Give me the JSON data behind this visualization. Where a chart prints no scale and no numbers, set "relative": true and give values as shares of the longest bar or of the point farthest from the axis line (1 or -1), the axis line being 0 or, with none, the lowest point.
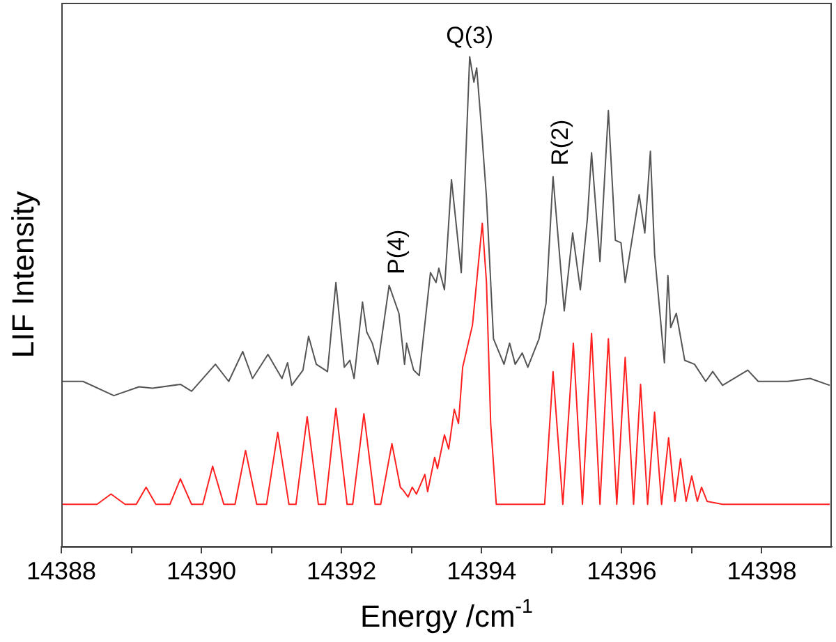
{
  "chart_data": {
    "type": "line",
    "relative": true,
    "xlabel": "Energy /cm$^{-1}$",
    "ylabel": "LIF Intensity",
    "xlim": [
      14388,
      14399
    ],
    "xticks": [
      14388,
      {
        "value": 14389,
        "label": null
      },
      14390,
      {
        "value": 14391,
        "label": null
      },
      14392,
      {
        "value": 14393,
        "label": null
      },
      14394,
      {
        "value": 14395,
        "label": null
      },
      14396,
      {
        "value": 14397,
        "label": null
      },
      14398
    ],
    "grid": false,
    "legend": false,
    "marker": "none",
    "line_style": "solid",
    "series": [
      {
        "color": "#555555",
        "x": [
          14388.0,
          14388.31,
          14388.75,
          14389.11,
          14389.3,
          14389.7,
          14389.86,
          14390.2,
          14390.39,
          14390.59,
          14390.73,
          14390.95,
          14391.15,
          14391.23,
          14391.29,
          14391.45,
          14391.53,
          14391.64,
          14391.8,
          14391.92,
          14392.04,
          14392.12,
          14392.18,
          14392.3,
          14392.36,
          14392.44,
          14392.52,
          14392.68,
          14392.82,
          14392.9,
          14392.93,
          14393.03,
          14393.11,
          14393.27,
          14393.35,
          14393.39,
          14393.47,
          14393.57,
          14393.71,
          14393.83,
          14393.89,
          14393.93,
          14393.99,
          14394.07,
          14394.17,
          14394.32,
          14394.4,
          14394.48,
          14394.58,
          14394.66,
          14394.82,
          14394.92,
          14395.02,
          14395.18,
          14395.3,
          14395.41,
          14395.51,
          14395.57,
          14395.69,
          14395.81,
          14395.91,
          14395.99,
          14396.05,
          14396.25,
          14396.33,
          14396.41,
          14396.47,
          14396.61,
          14396.66,
          14396.7,
          14396.78,
          14396.9,
          14397.04,
          14397.2,
          14397.3,
          14397.44,
          14397.8,
          14397.95,
          14398.37,
          14398.69,
          14398.97
        ],
        "values": [
          0.337,
          0.337,
          0.308,
          0.326,
          0.323,
          0.331,
          0.317,
          0.372,
          0.337,
          0.398,
          0.343,
          0.392,
          0.343,
          0.375,
          0.329,
          0.36,
          0.429,
          0.372,
          0.357,
          0.539,
          0.366,
          0.38,
          0.343,
          0.499,
          0.438,
          0.415,
          0.372,
          0.533,
          0.476,
          0.372,
          0.415,
          0.36,
          0.349,
          0.559,
          0.539,
          0.568,
          0.524,
          0.749,
          0.559,
          1.0,
          0.948,
          0.977,
          0.87,
          0.712,
          0.424,
          0.372,
          0.415,
          0.372,
          0.395,
          0.366,
          0.424,
          0.496,
          0.755,
          0.481,
          0.64,
          0.524,
          0.669,
          0.804,
          0.582,
          0.89,
          0.625,
          0.62,
          0.539,
          0.718,
          0.64,
          0.807,
          0.597,
          0.375,
          0.553,
          0.447,
          0.476,
          0.38,
          0.372,
          0.337,
          0.357,
          0.329,
          0.36,
          0.337,
          0.337,
          0.343,
          0.329
        ]
      },
      {
        "color": "#ff2020",
        "x": [
          14388.0,
          14388.51,
          14388.71,
          14388.91,
          14389.07,
          14389.21,
          14389.35,
          14389.55,
          14389.7,
          14389.86,
          14390.02,
          14390.16,
          14390.32,
          14390.48,
          14390.63,
          14390.79,
          14390.93,
          14391.09,
          14391.25,
          14391.35,
          14391.51,
          14391.67,
          14391.77,
          14391.92,
          14392.08,
          14392.16,
          14392.32,
          14392.48,
          14392.56,
          14392.72,
          14392.84,
          14392.88,
          14392.95,
          14393.01,
          14393.07,
          14393.19,
          14393.23,
          14393.33,
          14393.37,
          14393.47,
          14393.53,
          14393.61,
          14393.67,
          14393.73,
          14393.87,
          14394.01,
          14394.07,
          14394.13,
          14394.21,
          14394.9,
          14395.02,
          14395.16,
          14395.31,
          14395.44,
          14395.57,
          14395.69,
          14395.81,
          14395.93,
          14396.05,
          14396.17,
          14396.27,
          14396.37,
          14396.47,
          14396.57,
          14396.67,
          14396.76,
          14396.84,
          14396.92,
          14397.0,
          14397.08,
          14397.14,
          14397.22,
          14397.44,
          14398.97
        ],
        "values": [
          0.086,
          0.086,
          0.107,
          0.086,
          0.086,
          0.121,
          0.086,
          0.086,
          0.138,
          0.086,
          0.086,
          0.164,
          0.086,
          0.086,
          0.196,
          0.086,
          0.086,
          0.233,
          0.086,
          0.086,
          0.265,
          0.086,
          0.086,
          0.282,
          0.086,
          0.086,
          0.271,
          0.086,
          0.086,
          0.21,
          0.121,
          0.115,
          0.101,
          0.121,
          0.107,
          0.147,
          0.112,
          0.182,
          0.159,
          0.228,
          0.199,
          0.28,
          0.251,
          0.366,
          0.452,
          0.66,
          0.539,
          0.251,
          0.086,
          0.086,
          0.357,
          0.086,
          0.415,
          0.086,
          0.435,
          0.086,
          0.424,
          0.086,
          0.386,
          0.086,
          0.331,
          0.086,
          0.274,
          0.086,
          0.222,
          0.092,
          0.179,
          0.092,
          0.144,
          0.092,
          0.121,
          0.092,
          0.086,
          0.086
        ]
      }
    ],
    "annotations": [
      {
        "text": "P(4)",
        "x": 14392.68,
        "y": 0.533
      },
      {
        "text": "Q(3)",
        "x": 14393.83,
        "y": 1.0
      },
      {
        "text": "R(2)",
        "x": 14395.02,
        "y": 0.755
      }
    ]
  }
}
